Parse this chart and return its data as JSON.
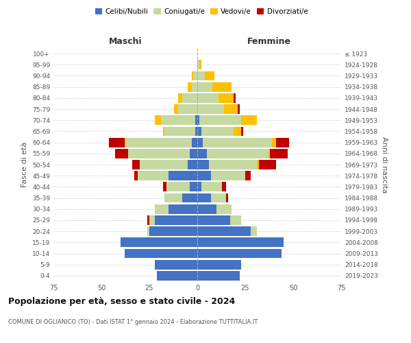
{
  "age_groups": [
    "0-4",
    "5-9",
    "10-14",
    "15-19",
    "20-24",
    "25-29",
    "30-34",
    "35-39",
    "40-44",
    "45-49",
    "50-54",
    "55-59",
    "60-64",
    "65-69",
    "70-74",
    "75-79",
    "80-84",
    "85-89",
    "90-94",
    "95-99",
    "100+"
  ],
  "birth_years": [
    "2019-2023",
    "2014-2018",
    "2009-2013",
    "2004-2008",
    "1999-2003",
    "1994-1998",
    "1989-1993",
    "1984-1988",
    "1979-1983",
    "1974-1978",
    "1969-1973",
    "1964-1968",
    "1959-1963",
    "1954-1958",
    "1949-1953",
    "1944-1948",
    "1939-1943",
    "1934-1938",
    "1929-1933",
    "1924-1928",
    "≤ 1923"
  ],
  "maschi": {
    "celibi": [
      21,
      22,
      38,
      40,
      25,
      22,
      15,
      8,
      4,
      15,
      5,
      4,
      3,
      1,
      1,
      0,
      0,
      0,
      0,
      0,
      0
    ],
    "coniugati": [
      0,
      0,
      0,
      0,
      1,
      3,
      7,
      9,
      12,
      16,
      25,
      32,
      34,
      16,
      18,
      10,
      8,
      3,
      2,
      0,
      0
    ],
    "vedovi": [
      0,
      0,
      0,
      0,
      0,
      0,
      0,
      0,
      0,
      0,
      0,
      0,
      1,
      1,
      3,
      2,
      2,
      2,
      1,
      0,
      0
    ],
    "divorziati": [
      0,
      0,
      0,
      0,
      0,
      1,
      0,
      0,
      2,
      2,
      4,
      7,
      8,
      0,
      0,
      0,
      0,
      0,
      0,
      0,
      0
    ]
  },
  "femmine": {
    "nubili": [
      22,
      23,
      44,
      45,
      28,
      17,
      10,
      7,
      2,
      7,
      6,
      5,
      3,
      2,
      1,
      0,
      0,
      0,
      0,
      0,
      0
    ],
    "coniugate": [
      0,
      0,
      0,
      0,
      3,
      6,
      8,
      8,
      11,
      18,
      25,
      32,
      36,
      17,
      22,
      14,
      11,
      8,
      4,
      1,
      0
    ],
    "vedove": [
      0,
      0,
      0,
      0,
      0,
      0,
      0,
      0,
      0,
      0,
      1,
      1,
      2,
      4,
      8,
      7,
      8,
      10,
      5,
      1,
      0
    ],
    "divorziate": [
      0,
      0,
      0,
      0,
      0,
      0,
      0,
      1,
      2,
      3,
      9,
      9,
      7,
      1,
      0,
      1,
      1,
      0,
      0,
      0,
      0
    ]
  },
  "colors": {
    "celibi_nubili": "#4472c4",
    "coniugati": "#c5d9a0",
    "vedovi": "#ffc000",
    "divorziati": "#c00000"
  },
  "xlim": 75,
  "title": "Popolazione per età, sesso e stato civile - 2024",
  "subtitle": "COMUNE DI OGLIANICO (TO) - Dati ISTAT 1° gennaio 2024 - Elaborazione TUTTITALIA.IT",
  "ylabel_left": "Fasce di età",
  "ylabel_right": "Anni di nascita",
  "xlabel_maschi": "Maschi",
  "xlabel_femmine": "Femmine",
  "bg_color": "#ffffff",
  "grid_color": "#cccccc"
}
